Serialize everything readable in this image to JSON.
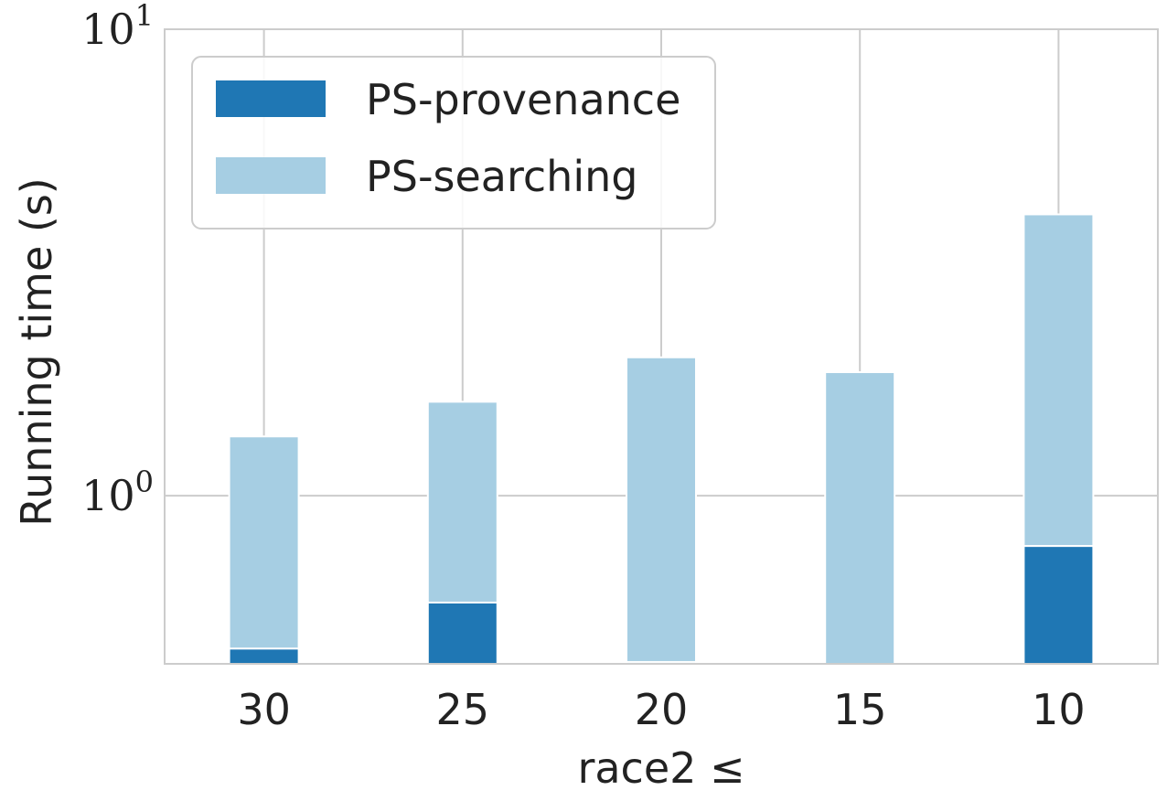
{
  "chart_data": {
    "type": "bar",
    "stacked": true,
    "categories": [
      "30",
      "25",
      "20",
      "15",
      "10"
    ],
    "series": [
      {
        "name": "PS-provenance",
        "color": "#1f77b4",
        "values": [
          0.47,
          0.59,
          0.44,
          0.0,
          0.78
        ]
      },
      {
        "name": "PS-searching",
        "color": "#a6cee3",
        "values": [
          0.87,
          1.0,
          1.54,
          1.84,
          3.23
        ]
      }
    ],
    "xlabel": "race2 ≤",
    "ylabel": "Running time (s)",
    "yscale": "log",
    "ylim": [
      0.436,
      10
    ],
    "yticks": [
      {
        "value": 1,
        "base": "10",
        "exp": "0"
      },
      {
        "value": 10,
        "base": "10",
        "exp": "1"
      }
    ],
    "grid": true,
    "legend_position": "top-left"
  }
}
